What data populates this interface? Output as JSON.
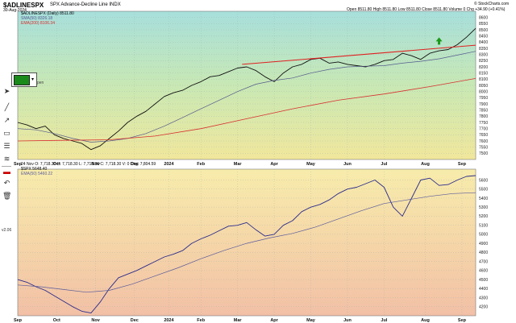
{
  "header": {
    "symbol": "$ADLINESPX",
    "description": "SPX Advance-Decline Line INDX",
    "date": "30-Aug-2024",
    "source": "© StockCharts.com",
    "ohlc": "Open 8511.80  High 8511.80  Low 8511.80  Close 8511.80  Volume 0  Chg +34.90 (+0.41%)"
  },
  "legends": {
    "top_line": "$ADLINESPX (Daily) 8511.80",
    "top_sma50": "SMA(50) 8326.18",
    "top_ema200": "EMA(200) 8106.34",
    "bottom_info": "24 Nov O: 7,718.30  H: 7,718.30  L: 7,718.30  C: 7,718.30  V: 0  Chg: 7,804.59",
    "bottom_spx": "$SPX 5648.40",
    "bottom_ema": "EMA(50) 5460.22"
  },
  "ui": {
    "version": "v2.06",
    "pen_label": "pen",
    "tools": [
      "cursor",
      "line",
      "arrow",
      "rect",
      "text",
      "fib",
      "color",
      "undo",
      "delete"
    ]
  },
  "colors": {
    "price": "#111111",
    "sma": "#555a8c",
    "ema200": "#d83030",
    "trendline": "#e02020",
    "arrow": "#1a9a1a",
    "spx_line": "#2b2b8c",
    "spx_ema": "#5b5b9c"
  },
  "chart_data": [
    {
      "type": "line",
      "title": "$ADLINESPX SPX Advance-Decline Line INDX",
      "ylim": [
        7450,
        8650
      ],
      "y_ticks": [
        7500,
        7550,
        7600,
        7650,
        7700,
        7750,
        7800,
        7850,
        7900,
        7950,
        8000,
        8050,
        8100,
        8150,
        8200,
        8250,
        8300,
        8350,
        8400,
        8450,
        8500,
        8550,
        8600
      ],
      "grid": true,
      "series": [
        {
          "name": "$ADLINESPX (Daily)",
          "x": [
            0,
            2,
            4,
            6,
            8,
            10,
            12,
            14,
            16,
            18,
            20,
            22,
            24,
            26,
            28,
            30,
            32,
            34,
            36,
            38,
            40,
            42,
            44,
            46,
            48,
            50,
            52,
            54,
            56,
            58,
            60,
            62,
            64,
            66,
            68,
            70,
            72,
            74,
            76,
            78,
            80,
            82,
            84,
            86,
            88,
            90,
            92,
            94,
            96,
            98,
            100
          ],
          "values": [
            7750,
            7730,
            7700,
            7720,
            7650,
            7620,
            7600,
            7580,
            7530,
            7560,
            7620,
            7680,
            7750,
            7800,
            7840,
            7900,
            7960,
            7990,
            8010,
            8050,
            8080,
            8120,
            8130,
            8160,
            8190,
            8200,
            8170,
            8120,
            8080,
            8150,
            8200,
            8220,
            8260,
            8270,
            8230,
            8240,
            8220,
            8210,
            8200,
            8220,
            8250,
            8260,
            8310,
            8290,
            8260,
            8310,
            8330,
            8340,
            8380,
            8440,
            8511.8
          ]
        },
        {
          "name": "SMA(50)",
          "x": [
            0,
            4,
            8,
            12,
            16,
            20,
            24,
            28,
            32,
            36,
            40,
            44,
            48,
            52,
            56,
            60,
            64,
            68,
            72,
            76,
            80,
            84,
            88,
            92,
            96,
            100
          ],
          "values": [
            7700,
            7690,
            7660,
            7620,
            7590,
            7600,
            7620,
            7660,
            7720,
            7790,
            7860,
            7930,
            8000,
            8060,
            8090,
            8110,
            8150,
            8180,
            8200,
            8205,
            8210,
            8230,
            8245,
            8265,
            8295,
            8326.18
          ]
        },
        {
          "name": "EMA(200)",
          "x": [
            0,
            10,
            20,
            30,
            40,
            50,
            60,
            70,
            80,
            90,
            100
          ],
          "values": [
            7600,
            7605,
            7610,
            7640,
            7700,
            7780,
            7860,
            7930,
            7980,
            8040,
            8106.34
          ]
        }
      ],
      "annotations": [
        {
          "type": "trendline",
          "from": {
            "x": 49,
            "value": 8220
          },
          "to": {
            "x": 100,
            "value": 8375
          }
        },
        {
          "type": "arrow-up",
          "x": 92,
          "value": 8400
        }
      ]
    },
    {
      "type": "line",
      "title": "$SPX",
      "ylim": [
        4100,
        5720
      ],
      "y_ticks": [
        4200,
        4300,
        4400,
        4500,
        4600,
        4700,
        4800,
        4900,
        5000,
        5100,
        5200,
        5300,
        5400,
        5500,
        5600
      ],
      "grid": true,
      "series": [
        {
          "name": "$SPX",
          "x": [
            0,
            2,
            4,
            6,
            8,
            10,
            12,
            14,
            16,
            18,
            20,
            22,
            24,
            26,
            28,
            30,
            32,
            34,
            36,
            38,
            40,
            42,
            44,
            46,
            48,
            50,
            52,
            54,
            56,
            58,
            60,
            62,
            64,
            66,
            68,
            70,
            72,
            74,
            76,
            78,
            80,
            82,
            84,
            86,
            88,
            90,
            92,
            94,
            96,
            98,
            100
          ],
          "values": [
            4500,
            4470,
            4420,
            4380,
            4320,
            4260,
            4200,
            4150,
            4130,
            4250,
            4400,
            4520,
            4560,
            4600,
            4650,
            4700,
            4750,
            4780,
            4820,
            4900,
            4950,
            4990,
            5040,
            5090,
            5100,
            5130,
            5050,
            4980,
            5000,
            5100,
            5150,
            5250,
            5300,
            5330,
            5380,
            5450,
            5500,
            5520,
            5560,
            5600,
            5520,
            5300,
            5200,
            5400,
            5600,
            5620,
            5540,
            5550,
            5600,
            5640,
            5648.4
          ]
        },
        {
          "name": "EMA(50)",
          "x": [
            0,
            5,
            10,
            15,
            20,
            25,
            30,
            35,
            40,
            45,
            50,
            55,
            60,
            65,
            70,
            75,
            80,
            85,
            90,
            95,
            100
          ],
          "values": [
            4440,
            4420,
            4390,
            4360,
            4380,
            4450,
            4540,
            4630,
            4730,
            4820,
            4900,
            4960,
            5010,
            5080,
            5170,
            5260,
            5340,
            5380,
            5420,
            5450,
            5460.22
          ]
        }
      ]
    }
  ],
  "x_axis": {
    "labels": [
      "Sep",
      "Oct",
      "Nov",
      "Dec",
      "2024",
      "Feb",
      "Mar",
      "Apr",
      "May",
      "Jun",
      "Jul",
      "Aug",
      "Sep"
    ],
    "positions": [
      0,
      8.5,
      17,
      25.5,
      33,
      40,
      48,
      56,
      64,
      72,
      80,
      89,
      97
    ]
  }
}
